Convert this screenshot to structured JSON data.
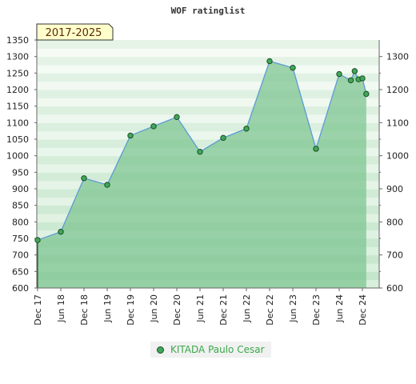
{
  "colors": {
    "fill": "#7cc48f",
    "line": "#5b9bd5",
    "marker": "#3fa85a",
    "marker_stroke": "#1d4d24",
    "badge_bg": "#ffffcc",
    "legend_text": "#3aa84a"
  },
  "chart_data": {
    "type": "area",
    "title": "WOF ratinglist",
    "badge": "2017-2025",
    "x_labels": [
      "Dec 17",
      "Jun 18",
      "Dec 18",
      "Jun 19",
      "Dec 19",
      "Jun 20",
      "Dec 20",
      "Jun 21",
      "Dec 21",
      "Jun 22",
      "Dec 22",
      "Jun 23",
      "Dec 23",
      "Jun 24",
      "Dec 24"
    ],
    "left_ticks": [
      600,
      650,
      700,
      750,
      800,
      850,
      900,
      950,
      1000,
      1050,
      1100,
      1150,
      1200,
      1250,
      1300,
      1350
    ],
    "right_ticks": [
      600,
      700,
      800,
      900,
      1000,
      1100,
      1200,
      1300
    ],
    "ylim": [
      600,
      1350
    ],
    "series": [
      {
        "name": "KITADA Paulo Cesar",
        "points": [
          {
            "x": "Dec 17",
            "y": 745
          },
          {
            "x": "Jun 18",
            "y": 770
          },
          {
            "x": "Dec 18",
            "y": 932
          },
          {
            "x": "Jun 19",
            "y": 912
          },
          {
            "x": "Dec 19",
            "y": 1061
          },
          {
            "x": "Jun 20",
            "y": 1089
          },
          {
            "x": "Dec 20",
            "y": 1117
          },
          {
            "x": "Jun 21",
            "y": 1012
          },
          {
            "x": "Dec 21",
            "y": 1054
          },
          {
            "x": "Jun 22",
            "y": 1082
          },
          {
            "x": "Dec 22",
            "y": 1286
          },
          {
            "x": "Jun 23",
            "y": 1266
          },
          {
            "x": "Dec 23",
            "y": 1021
          },
          {
            "x": "Jun 24",
            "y": 1247
          },
          {
            "x": "Sep 24",
            "y": 1228
          },
          {
            "x": "Oct 24",
            "y": 1256
          },
          {
            "x": "Nov 24",
            "y": 1231
          },
          {
            "x": "Dec 24",
            "y": 1234
          },
          {
            "x": "Jan 25",
            "y": 1187
          }
        ]
      }
    ],
    "legend": {
      "position": "bottom",
      "label": "KITADA Paulo Cesar"
    }
  }
}
